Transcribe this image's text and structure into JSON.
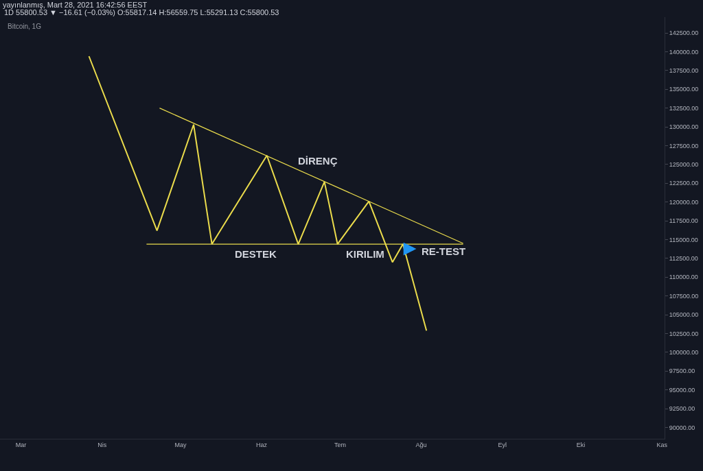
{
  "chart_data": {
    "type": "line",
    "title": "yayınlanmış, Mart 28, 2021 16:42:56 EEST",
    "subtitle": "1D 55800.53 ▼ −16.61 (−0.03%) O:55817.14 H:56559.75 L:55291.13 C:55800.53",
    "annotations": [
      "Bitcoin, 1G",
      "DİRENÇ",
      "DESTEK",
      "KIRILIM",
      "RE-TEST"
    ],
    "series": [
      {
        "color": "#ebdc4c",
        "x": [
          "--03-27",
          "--04-22",
          "--05-06",
          "--05-13",
          "--06-03",
          "--06-15",
          "--06-25",
          "--06-30",
          "--07-12",
          "--07-21",
          "--07-25",
          "--08-03"
        ],
        "values": [
          139400,
          116200,
          130300,
          114400,
          126200,
          114400,
          122700,
          114400,
          120100,
          112000,
          114400,
          102900
        ]
      },
      {
        "color": "#ebdc4c",
        "x": [
          "--04-23",
          "--08-17"
        ],
        "values": [
          132500,
          114500
        ]
      },
      {
        "color": "#ebdc4c",
        "x": [
          "--04-18",
          "--08-17"
        ],
        "values": [
          114400,
          114400
        ]
      }
    ],
    "xlim": [
      "--02-21",
      "--11-02"
    ],
    "xticks": [
      {
        "value": "--03-01",
        "label": "Mar"
      },
      {
        "value": "--04-01",
        "label": "Nis"
      },
      {
        "value": "--05-01",
        "label": "May"
      },
      {
        "value": "--06-01",
        "label": "Haz"
      },
      {
        "value": "--07-01",
        "label": "Tem"
      },
      {
        "value": "--08-01",
        "label": "Ağu"
      },
      {
        "value": "--09-01",
        "label": "Eyl"
      },
      {
        "value": "--10-01",
        "label": "Eki"
      },
      {
        "value": "--11-01",
        "label": "Kas"
      }
    ],
    "ylim": [
      88500,
      144600
    ],
    "yticks": [
      {
        "value": 90000,
        "label": "90000.00"
      },
      {
        "value": 92500,
        "label": "92500.00"
      },
      {
        "value": 95000,
        "label": "95000.00"
      },
      {
        "value": 97500,
        "label": "97500.00"
      },
      {
        "value": 100000,
        "label": "100000.00"
      },
      {
        "value": 102500,
        "label": "102500.00"
      },
      {
        "value": 105000,
        "label": "105000.00"
      },
      {
        "value": 107500,
        "label": "107500.00"
      },
      {
        "value": 110000,
        "label": "110000.00"
      },
      {
        "value": 112500,
        "label": "112500.00"
      },
      {
        "value": 115000,
        "label": "115000.00"
      },
      {
        "value": 117500,
        "label": "117500.00"
      },
      {
        "value": 120000,
        "label": "120000.00"
      },
      {
        "value": 122500,
        "label": "122500.00"
      },
      {
        "value": 125000,
        "label": "125000.00"
      },
      {
        "value": 127500,
        "label": "127500.00"
      },
      {
        "value": 130000,
        "label": "130000.00"
      },
      {
        "value": 132500,
        "label": "132500.00"
      },
      {
        "value": 135000,
        "label": "135000.00"
      },
      {
        "value": 137500,
        "label": "137500.00"
      },
      {
        "value": 140000,
        "label": "140000.00"
      },
      {
        "value": 142500,
        "label": "142500.00"
      }
    ]
  }
}
